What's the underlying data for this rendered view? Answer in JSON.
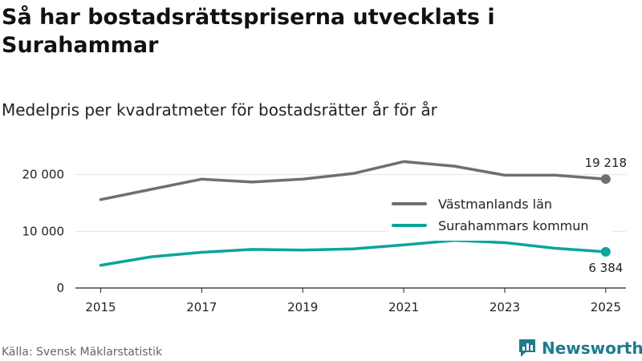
{
  "title": "Så har bostadsrättspriserna utvecklats i Surahammar",
  "subtitle": "Medelpris per kvadratmeter för bostadsrätter år för år",
  "source": "Källa: Svensk Mäklarstatistik",
  "brand": "Newsworthy",
  "colors": {
    "gray": "#6e6e73",
    "teal": "#0aa59a",
    "brand": "#1f7a8c",
    "grid": "#e3e3e3"
  },
  "chart_data": {
    "type": "line",
    "x": [
      2015,
      2016,
      2017,
      2018,
      2019,
      2020,
      2021,
      2022,
      2023,
      2024,
      2025
    ],
    "x_tick_labels": [
      "2015",
      "2017",
      "2019",
      "2021",
      "2023",
      "2025"
    ],
    "x_ticks": [
      2015,
      2017,
      2019,
      2021,
      2023,
      2025
    ],
    "y_tick_labels": [
      "0",
      "10 000",
      "20 000"
    ],
    "y_ticks": [
      0,
      10000,
      20000
    ],
    "ylim": [
      0,
      22500
    ],
    "xlim": [
      2014.5,
      2025.4
    ],
    "series": [
      {
        "name": "Västmanlands län",
        "color": "#6e6e73",
        "values": [
          15600,
          17400,
          19200,
          18700,
          19200,
          20200,
          22300,
          21500,
          19900,
          19900,
          19218
        ],
        "end_label": "19 218"
      },
      {
        "name": "Surahammars kommun",
        "color": "#0aa59a",
        "values": [
          4000,
          5500,
          6300,
          6800,
          6700,
          6900,
          7600,
          8400,
          8000,
          7000,
          6384
        ],
        "end_label": "6 384"
      }
    ],
    "legend_position": "right"
  }
}
